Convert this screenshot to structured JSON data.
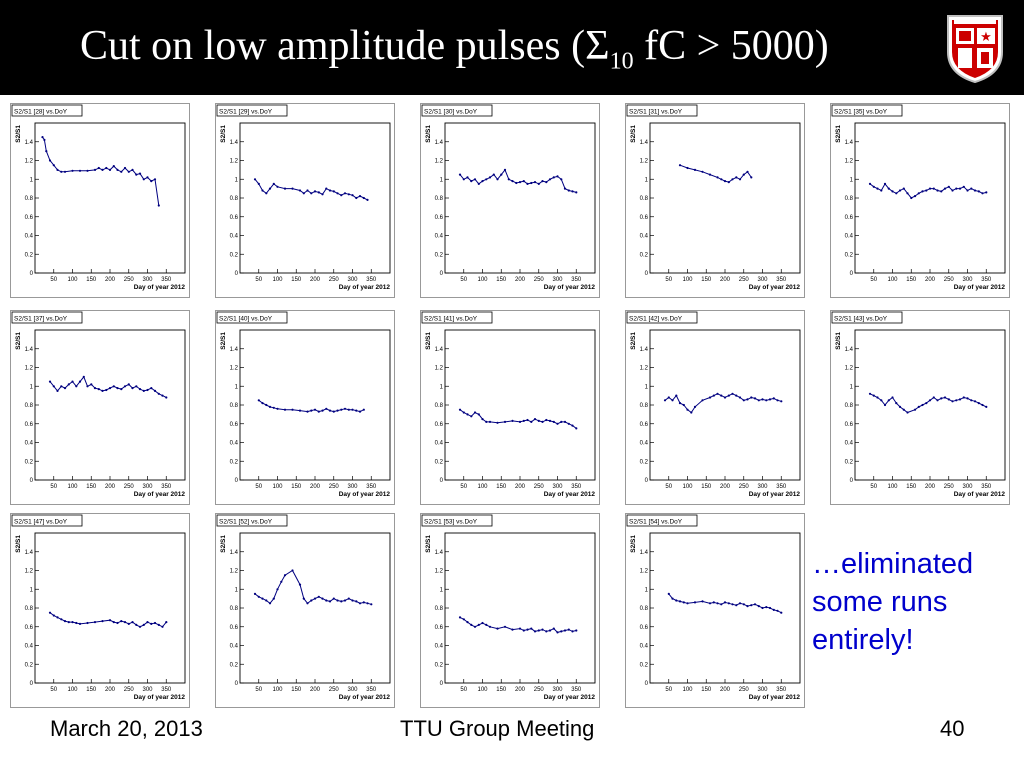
{
  "slide": {
    "title_main": "Cut on low amplitude pulses (Σ",
    "title_sub": "10",
    "title_tail": " fC > 5000)",
    "note": "…eliminated some runs entirely!",
    "footer_date": "March 20, 2013",
    "footer_meeting": "TTU Group Meeting",
    "footer_page": "40"
  },
  "colors": {
    "data_line": "#000080",
    "note_text": "#0000cc",
    "title_bar": "#000000"
  },
  "logo_icon": "ttu-shield-icon",
  "chart_data": [
    {
      "type": "line",
      "title": "S2/S1 [28] vs.DoY",
      "xlabel": "Day of year 2012",
      "ylabel": "S2/S1",
      "xlim": [
        0,
        400
      ],
      "ylim": [
        0,
        1.6
      ],
      "x": [
        20,
        25,
        30,
        40,
        50,
        60,
        70,
        80,
        100,
        120,
        140,
        160,
        170,
        180,
        190,
        200,
        210,
        220,
        230,
        240,
        250,
        260,
        270,
        280,
        290,
        300,
        310,
        320,
        330
      ],
      "y": [
        1.45,
        1.42,
        1.3,
        1.2,
        1.15,
        1.1,
        1.08,
        1.08,
        1.09,
        1.09,
        1.09,
        1.1,
        1.12,
        1.1,
        1.12,
        1.1,
        1.14,
        1.1,
        1.08,
        1.12,
        1.08,
        1.1,
        1.05,
        1.06,
        1.0,
        1.02,
        0.98,
        1.0,
        0.72
      ]
    },
    {
      "type": "line",
      "title": "S2/S1 [29] vs.DoY",
      "xlabel": "Day of year 2012",
      "ylabel": "S2/S1",
      "xlim": [
        0,
        400
      ],
      "ylim": [
        0,
        1.6
      ],
      "x": [
        40,
        50,
        60,
        70,
        80,
        90,
        100,
        120,
        140,
        160,
        170,
        180,
        190,
        200,
        210,
        220,
        230,
        240,
        250,
        260,
        270,
        280,
        290,
        300,
        310,
        320,
        330,
        340
      ],
      "y": [
        1.0,
        0.95,
        0.88,
        0.85,
        0.9,
        0.95,
        0.92,
        0.9,
        0.9,
        0.88,
        0.85,
        0.88,
        0.85,
        0.87,
        0.86,
        0.84,
        0.9,
        0.88,
        0.87,
        0.85,
        0.83,
        0.85,
        0.84,
        0.83,
        0.8,
        0.82,
        0.8,
        0.78
      ]
    },
    {
      "type": "line",
      "title": "S2/S1 [30] vs.DoY",
      "xlabel": "Day of year 2012",
      "ylabel": "S2/S1",
      "xlim": [
        0,
        400
      ],
      "ylim": [
        0,
        1.6
      ],
      "x": [
        40,
        50,
        60,
        70,
        80,
        90,
        100,
        110,
        120,
        130,
        140,
        150,
        160,
        170,
        180,
        190,
        200,
        210,
        220,
        230,
        240,
        250,
        260,
        270,
        280,
        290,
        300,
        310,
        320,
        330,
        340,
        350
      ],
      "y": [
        1.05,
        1.0,
        1.02,
        0.98,
        1.0,
        0.95,
        0.98,
        1.0,
        1.02,
        1.05,
        1.0,
        1.05,
        1.1,
        1.0,
        0.98,
        0.96,
        0.97,
        0.98,
        0.95,
        0.96,
        0.97,
        0.95,
        0.98,
        0.97,
        1.0,
        1.02,
        1.03,
        1.0,
        0.9,
        0.88,
        0.87,
        0.86
      ]
    },
    {
      "type": "line",
      "title": "S2/S1 [31] vs.DoY",
      "xlabel": "Day of year 2012",
      "ylabel": "S2/S1",
      "xlim": [
        0,
        400
      ],
      "ylim": [
        0,
        1.6
      ],
      "x": [
        80,
        100,
        120,
        140,
        160,
        180,
        190,
        200,
        210,
        220,
        230,
        240,
        250,
        260,
        270
      ],
      "y": [
        1.15,
        1.12,
        1.1,
        1.08,
        1.05,
        1.02,
        1.0,
        0.98,
        0.97,
        1.0,
        1.02,
        1.0,
        1.05,
        1.08,
        1.02
      ]
    },
    {
      "type": "line",
      "title": "S2/S1 [35] vs.DoY",
      "xlabel": "Day of year 2012",
      "ylabel": "S2/S1",
      "xlim": [
        0,
        400
      ],
      "ylim": [
        0,
        1.6
      ],
      "x": [
        40,
        50,
        60,
        70,
        80,
        90,
        100,
        110,
        120,
        130,
        140,
        150,
        160,
        170,
        180,
        190,
        200,
        210,
        220,
        230,
        240,
        250,
        260,
        270,
        280,
        290,
        300,
        310,
        320,
        330,
        340,
        350
      ],
      "y": [
        0.95,
        0.92,
        0.9,
        0.88,
        0.95,
        0.9,
        0.87,
        0.85,
        0.88,
        0.9,
        0.85,
        0.8,
        0.82,
        0.85,
        0.87,
        0.88,
        0.9,
        0.9,
        0.88,
        0.87,
        0.9,
        0.92,
        0.88,
        0.9,
        0.9,
        0.92,
        0.88,
        0.9,
        0.88,
        0.87,
        0.85,
        0.86
      ]
    },
    {
      "type": "line",
      "title": "S2/S1 [37] vs.DoY",
      "xlabel": "Day of year 2012",
      "ylabel": "S2/S1",
      "xlim": [
        0,
        400
      ],
      "ylim": [
        0,
        1.6
      ],
      "x": [
        40,
        50,
        60,
        70,
        80,
        90,
        100,
        110,
        120,
        130,
        140,
        150,
        160,
        170,
        180,
        190,
        200,
        210,
        220,
        230,
        240,
        250,
        260,
        270,
        280,
        290,
        300,
        310,
        320,
        330,
        340,
        350
      ],
      "y": [
        1.05,
        1.0,
        0.95,
        1.0,
        0.98,
        1.02,
        1.05,
        1.0,
        1.05,
        1.1,
        1.0,
        1.02,
        0.98,
        0.97,
        0.95,
        0.96,
        0.98,
        1.0,
        0.98,
        0.97,
        1.0,
        1.02,
        0.98,
        1.0,
        0.97,
        0.95,
        0.96,
        0.98,
        0.95,
        0.92,
        0.9,
        0.88
      ]
    },
    {
      "type": "line",
      "title": "S2/S1 [40] vs.DoY",
      "xlabel": "Day of year 2012",
      "ylabel": "S2/S1",
      "xlim": [
        0,
        400
      ],
      "ylim": [
        0,
        1.6
      ],
      "x": [
        50,
        60,
        70,
        80,
        90,
        100,
        120,
        140,
        160,
        180,
        190,
        200,
        210,
        220,
        230,
        240,
        250,
        260,
        270,
        280,
        290,
        300,
        310,
        320,
        330
      ],
      "y": [
        0.85,
        0.82,
        0.8,
        0.78,
        0.77,
        0.76,
        0.75,
        0.75,
        0.74,
        0.73,
        0.74,
        0.75,
        0.73,
        0.74,
        0.76,
        0.74,
        0.73,
        0.74,
        0.75,
        0.76,
        0.75,
        0.75,
        0.74,
        0.73,
        0.75
      ]
    },
    {
      "type": "line",
      "title": "S2/S1 [41] vs.DoY",
      "xlabel": "Day of year 2012",
      "ylabel": "S2/S1",
      "xlim": [
        0,
        400
      ],
      "ylim": [
        0,
        1.6
      ],
      "x": [
        40,
        50,
        60,
        70,
        80,
        90,
        100,
        110,
        120,
        140,
        160,
        180,
        200,
        210,
        220,
        230,
        240,
        250,
        260,
        270,
        280,
        290,
        300,
        310,
        320,
        330,
        340,
        350
      ],
      "y": [
        0.75,
        0.72,
        0.7,
        0.68,
        0.72,
        0.7,
        0.65,
        0.62,
        0.62,
        0.61,
        0.62,
        0.63,
        0.62,
        0.63,
        0.64,
        0.62,
        0.65,
        0.63,
        0.62,
        0.64,
        0.63,
        0.62,
        0.6,
        0.62,
        0.62,
        0.6,
        0.58,
        0.55
      ]
    },
    {
      "type": "line",
      "title": "S2/S1 [42] vs.DoY",
      "xlabel": "Day of year 2012",
      "ylabel": "S2/S1",
      "xlim": [
        0,
        400
      ],
      "ylim": [
        0,
        1.6
      ],
      "x": [
        40,
        50,
        60,
        70,
        80,
        90,
        100,
        110,
        120,
        140,
        160,
        170,
        180,
        190,
        200,
        210,
        220,
        230,
        240,
        250,
        260,
        270,
        280,
        290,
        300,
        310,
        320,
        330,
        340,
        350
      ],
      "y": [
        0.85,
        0.88,
        0.85,
        0.9,
        0.82,
        0.8,
        0.75,
        0.72,
        0.78,
        0.85,
        0.88,
        0.9,
        0.92,
        0.9,
        0.88,
        0.9,
        0.92,
        0.9,
        0.88,
        0.85,
        0.86,
        0.88,
        0.87,
        0.85,
        0.86,
        0.85,
        0.86,
        0.87,
        0.85,
        0.84
      ]
    },
    {
      "type": "line",
      "title": "S2/S1 [43] vs.DoY",
      "xlabel": "Day of year 2012",
      "ylabel": "S2/S1",
      "xlim": [
        0,
        400
      ],
      "ylim": [
        0,
        1.6
      ],
      "x": [
        40,
        50,
        60,
        70,
        80,
        90,
        100,
        110,
        120,
        130,
        140,
        160,
        170,
        180,
        190,
        200,
        210,
        220,
        230,
        240,
        250,
        260,
        270,
        280,
        290,
        300,
        310,
        320,
        330,
        340,
        350
      ],
      "y": [
        0.92,
        0.9,
        0.88,
        0.85,
        0.8,
        0.85,
        0.88,
        0.82,
        0.78,
        0.75,
        0.72,
        0.75,
        0.78,
        0.8,
        0.82,
        0.85,
        0.88,
        0.85,
        0.87,
        0.88,
        0.86,
        0.84,
        0.85,
        0.86,
        0.88,
        0.87,
        0.85,
        0.84,
        0.82,
        0.8,
        0.78
      ]
    },
    {
      "type": "line",
      "title": "S2/S1 [47] vs.DoY",
      "xlabel": "Day of year 2012",
      "ylabel": "S2/S1",
      "xlim": [
        0,
        400
      ],
      "ylim": [
        0,
        1.6
      ],
      "x": [
        40,
        50,
        60,
        70,
        80,
        90,
        100,
        110,
        120,
        140,
        160,
        180,
        200,
        210,
        220,
        230,
        240,
        250,
        260,
        270,
        280,
        290,
        300,
        310,
        320,
        330,
        340,
        350
      ],
      "y": [
        0.75,
        0.72,
        0.7,
        0.68,
        0.66,
        0.65,
        0.65,
        0.64,
        0.63,
        0.64,
        0.65,
        0.66,
        0.67,
        0.65,
        0.64,
        0.66,
        0.65,
        0.63,
        0.65,
        0.62,
        0.6,
        0.62,
        0.65,
        0.63,
        0.64,
        0.62,
        0.6,
        0.65
      ]
    },
    {
      "type": "line",
      "title": "S2/S1 [52] vs.DoY",
      "xlabel": "Day of year 2012",
      "ylabel": "S2/S1",
      "xlim": [
        0,
        400
      ],
      "ylim": [
        0,
        1.6
      ],
      "x": [
        40,
        50,
        60,
        70,
        80,
        90,
        100,
        110,
        120,
        140,
        160,
        170,
        180,
        190,
        200,
        210,
        220,
        230,
        240,
        250,
        260,
        270,
        280,
        290,
        300,
        310,
        320,
        330,
        340,
        350
      ],
      "y": [
        0.95,
        0.92,
        0.9,
        0.88,
        0.85,
        0.9,
        1.0,
        1.08,
        1.15,
        1.2,
        1.05,
        0.9,
        0.85,
        0.88,
        0.9,
        0.92,
        0.9,
        0.88,
        0.87,
        0.9,
        0.88,
        0.87,
        0.88,
        0.9,
        0.88,
        0.87,
        0.85,
        0.86,
        0.85,
        0.84
      ]
    },
    {
      "type": "line",
      "title": "S2/S1 [53] vs.DoY",
      "xlabel": "Day of year 2012",
      "ylabel": "S2/S1",
      "xlim": [
        0,
        400
      ],
      "ylim": [
        0,
        1.6
      ],
      "x": [
        40,
        50,
        60,
        70,
        80,
        90,
        100,
        110,
        120,
        140,
        160,
        180,
        200,
        210,
        220,
        230,
        240,
        250,
        260,
        270,
        280,
        290,
        300,
        310,
        320,
        330,
        340,
        350
      ],
      "y": [
        0.7,
        0.68,
        0.65,
        0.62,
        0.6,
        0.62,
        0.64,
        0.62,
        0.6,
        0.58,
        0.6,
        0.57,
        0.58,
        0.56,
        0.57,
        0.58,
        0.55,
        0.56,
        0.57,
        0.55,
        0.56,
        0.58,
        0.54,
        0.55,
        0.56,
        0.57,
        0.55,
        0.56
      ]
    },
    {
      "type": "line",
      "title": "S2/S1 [54] vs.DoY",
      "xlabel": "Day of year 2012",
      "ylabel": "S2/S1",
      "xlim": [
        0,
        400
      ],
      "ylim": [
        0,
        1.6
      ],
      "x": [
        50,
        60,
        70,
        80,
        90,
        100,
        120,
        140,
        160,
        170,
        180,
        190,
        200,
        210,
        220,
        230,
        240,
        250,
        260,
        270,
        280,
        290,
        300,
        310,
        320,
        330,
        340,
        350
      ],
      "y": [
        0.95,
        0.9,
        0.88,
        0.87,
        0.86,
        0.85,
        0.86,
        0.87,
        0.85,
        0.86,
        0.85,
        0.84,
        0.86,
        0.85,
        0.84,
        0.83,
        0.85,
        0.84,
        0.82,
        0.83,
        0.84,
        0.82,
        0.8,
        0.81,
        0.8,
        0.78,
        0.77,
        0.75
      ]
    }
  ]
}
